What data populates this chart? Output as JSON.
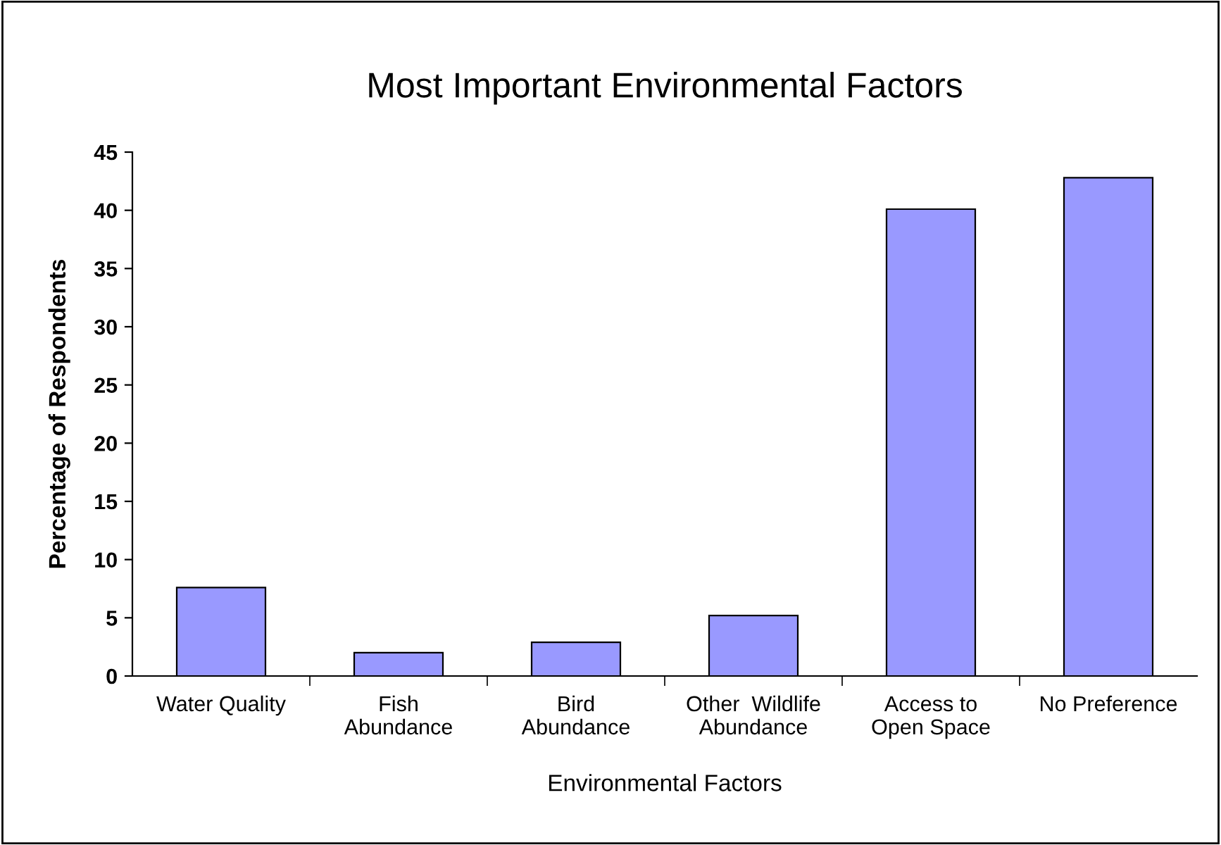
{
  "chart_data": {
    "type": "bar",
    "title": "Most Important Environmental Factors",
    "xlabel": "Environmental Factors",
    "ylabel": "Percentage of Respondents",
    "categories": [
      "Water Quality",
      "Fish\nAbundance",
      "Bird\nAbundance",
      "Other  Wildlife\nAbundance",
      "Access to\nOpen Space",
      "No Preference"
    ],
    "values": [
      7.6,
      2.0,
      2.9,
      5.2,
      40.1,
      42.8
    ],
    "color": "#9999ff",
    "ylim": [
      0,
      45
    ],
    "yticks": [
      0,
      5,
      10,
      15,
      20,
      25,
      30,
      35,
      40,
      45
    ],
    "grid": false,
    "legend": false
  }
}
